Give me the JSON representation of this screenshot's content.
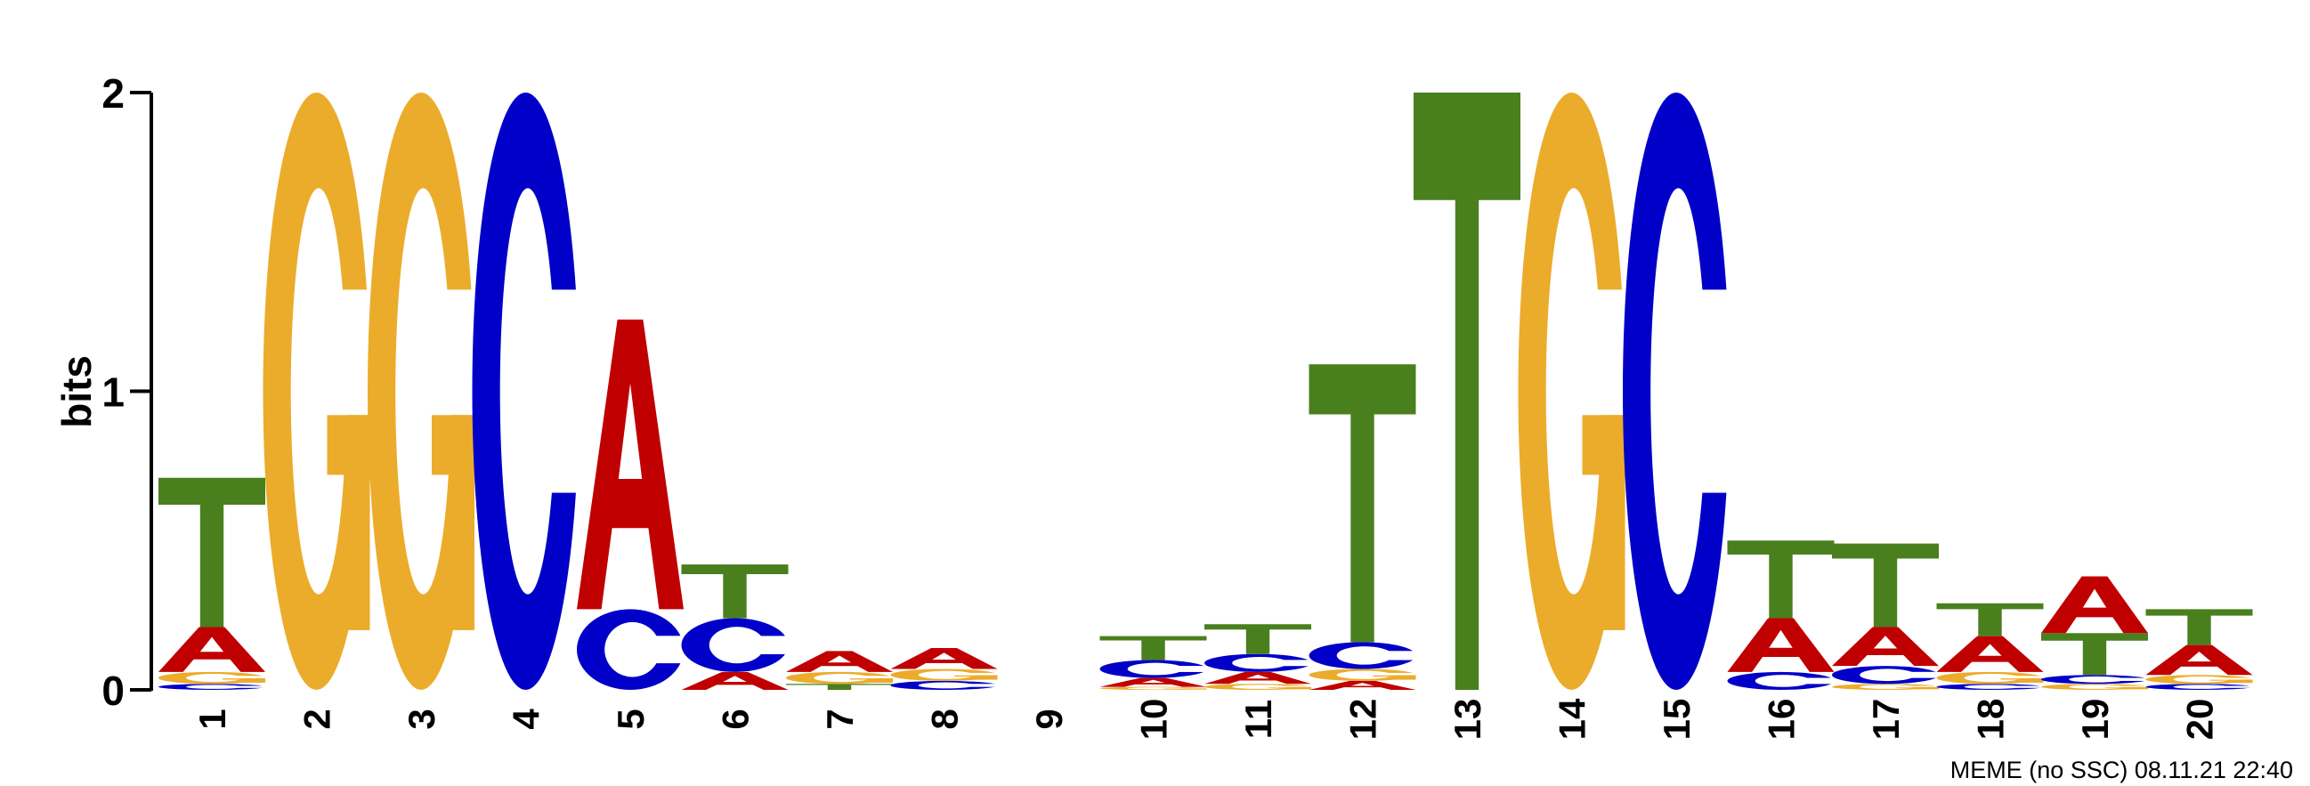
{
  "chart_data": {
    "type": "sequence-logo",
    "ylabel": "bits",
    "ylim": [
      0,
      2
    ],
    "yticks": [
      "0",
      "1",
      "2"
    ],
    "colors": {
      "A": "#c00000",
      "C": "#0000c8",
      "G": "#ebac2b",
      "T": "#4a7f1e"
    },
    "positions": [
      {
        "label": "1",
        "letters": [
          {
            "base": "C",
            "bits": 0.02
          },
          {
            "base": "G",
            "bits": 0.04
          },
          {
            "base": "A",
            "bits": 0.15
          },
          {
            "base": "T",
            "bits": 0.5
          }
        ]
      },
      {
        "label": "2",
        "letters": [
          {
            "base": "G",
            "bits": 2.0
          }
        ]
      },
      {
        "label": "3",
        "letters": [
          {
            "base": "G",
            "bits": 2.0
          }
        ]
      },
      {
        "label": "4",
        "letters": [
          {
            "base": "C",
            "bits": 2.0
          }
        ]
      },
      {
        "label": "5",
        "letters": [
          {
            "base": "C",
            "bits": 0.27
          },
          {
            "base": "A",
            "bits": 0.97
          }
        ]
      },
      {
        "label": "6",
        "letters": [
          {
            "base": "A",
            "bits": 0.06
          },
          {
            "base": "C",
            "bits": 0.18
          },
          {
            "base": "T",
            "bits": 0.18
          }
        ]
      },
      {
        "label": "7",
        "letters": [
          {
            "base": "T",
            "bits": 0.02
          },
          {
            "base": "G",
            "bits": 0.04
          },
          {
            "base": "A",
            "bits": 0.07
          }
        ]
      },
      {
        "label": "8",
        "letters": [
          {
            "base": "C",
            "bits": 0.03
          },
          {
            "base": "G",
            "bits": 0.04
          },
          {
            "base": "A",
            "bits": 0.07
          }
        ]
      },
      {
        "label": "9",
        "letters": []
      },
      {
        "label": "10",
        "letters": [
          {
            "base": "G",
            "bits": 0.01
          },
          {
            "base": "A",
            "bits": 0.03
          },
          {
            "base": "C",
            "bits": 0.06
          },
          {
            "base": "T",
            "bits": 0.08
          }
        ]
      },
      {
        "label": "11",
        "letters": [
          {
            "base": "G",
            "bits": 0.02
          },
          {
            "base": "A",
            "bits": 0.04
          },
          {
            "base": "C",
            "bits": 0.06
          },
          {
            "base": "T",
            "bits": 0.1
          }
        ]
      },
      {
        "label": "12",
        "letters": [
          {
            "base": "A",
            "bits": 0.03
          },
          {
            "base": "G",
            "bits": 0.04
          },
          {
            "base": "C",
            "bits": 0.09
          },
          {
            "base": "T",
            "bits": 0.93
          }
        ]
      },
      {
        "label": "13",
        "letters": [
          {
            "base": "T",
            "bits": 2.0
          }
        ]
      },
      {
        "label": "14",
        "letters": [
          {
            "base": "G",
            "bits": 2.0
          }
        ]
      },
      {
        "label": "15",
        "letters": [
          {
            "base": "C",
            "bits": 2.0
          }
        ]
      },
      {
        "label": "16",
        "letters": [
          {
            "base": "C",
            "bits": 0.06
          },
          {
            "base": "A",
            "bits": 0.18
          },
          {
            "base": "T",
            "bits": 0.26
          }
        ]
      },
      {
        "label": "17",
        "letters": [
          {
            "base": "G",
            "bits": 0.02
          },
          {
            "base": "C",
            "bits": 0.06
          },
          {
            "base": "A",
            "bits": 0.13
          },
          {
            "base": "T",
            "bits": 0.28
          }
        ]
      },
      {
        "label": "18",
        "letters": [
          {
            "base": "C",
            "bits": 0.02
          },
          {
            "base": "G",
            "bits": 0.04
          },
          {
            "base": "A",
            "bits": 0.12
          },
          {
            "base": "T",
            "bits": 0.11
          }
        ]
      },
      {
        "label": "19",
        "letters": [
          {
            "base": "G",
            "bits": 0.02
          },
          {
            "base": "C",
            "bits": 0.03
          },
          {
            "base": "T",
            "bits": 0.14
          },
          {
            "base": "A",
            "bits": 0.19
          }
        ]
      },
      {
        "label": "20",
        "letters": [
          {
            "base": "C",
            "bits": 0.02
          },
          {
            "base": "G",
            "bits": 0.03
          },
          {
            "base": "A",
            "bits": 0.1
          },
          {
            "base": "T",
            "bits": 0.12
          }
        ]
      }
    ]
  },
  "footer": "MEME (no SSC) 08.11.21 22:40"
}
